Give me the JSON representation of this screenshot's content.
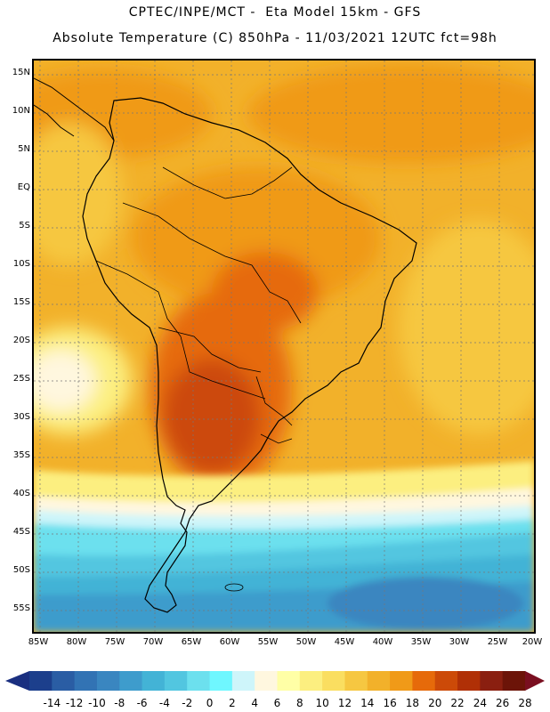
{
  "header": {
    "line1": "CPTEC/INPE/MCT -  Eta Model 15km - GFS",
    "line2": "Absolute Temperature (C) 850hPa - 11/03/2021 12UTC fct=98h"
  },
  "map": {
    "region": "South America",
    "lat_labels": [
      "15N",
      "10N",
      "5N",
      "EQ",
      "5S",
      "10S",
      "15S",
      "20S",
      "25S",
      "30S",
      "35S",
      "40S",
      "45S",
      "50S",
      "55S"
    ],
    "lon_labels": [
      "85W",
      "80W",
      "75W",
      "70W",
      "65W",
      "60W",
      "55W",
      "50W",
      "45W",
      "40W",
      "35W",
      "30W",
      "25W",
      "20W"
    ]
  },
  "legend": {
    "labels": [
      "-14",
      "-12",
      "-10",
      "-8",
      "-6",
      "-4",
      "-2",
      "0",
      "2",
      "4",
      "6",
      "8",
      "10",
      "12",
      "14",
      "16",
      "18",
      "20",
      "22",
      "24",
      "26",
      "28"
    ],
    "colors": [
      "#1c3f8c",
      "#2a5da4",
      "#3273b4",
      "#3a86c0",
      "#3e9ccc",
      "#43b3d6",
      "#52c6e0",
      "#6ce0ee",
      "#6ff7ff",
      "#cef5fa",
      "#fff7df",
      "#ffffa6",
      "#fcef80",
      "#fade60",
      "#f6c741",
      "#f2b12a",
      "#f09a18",
      "#e66a0a",
      "#cc4a08",
      "#b03006",
      "#8a1f10",
      "#6c1408"
    ]
  }
}
